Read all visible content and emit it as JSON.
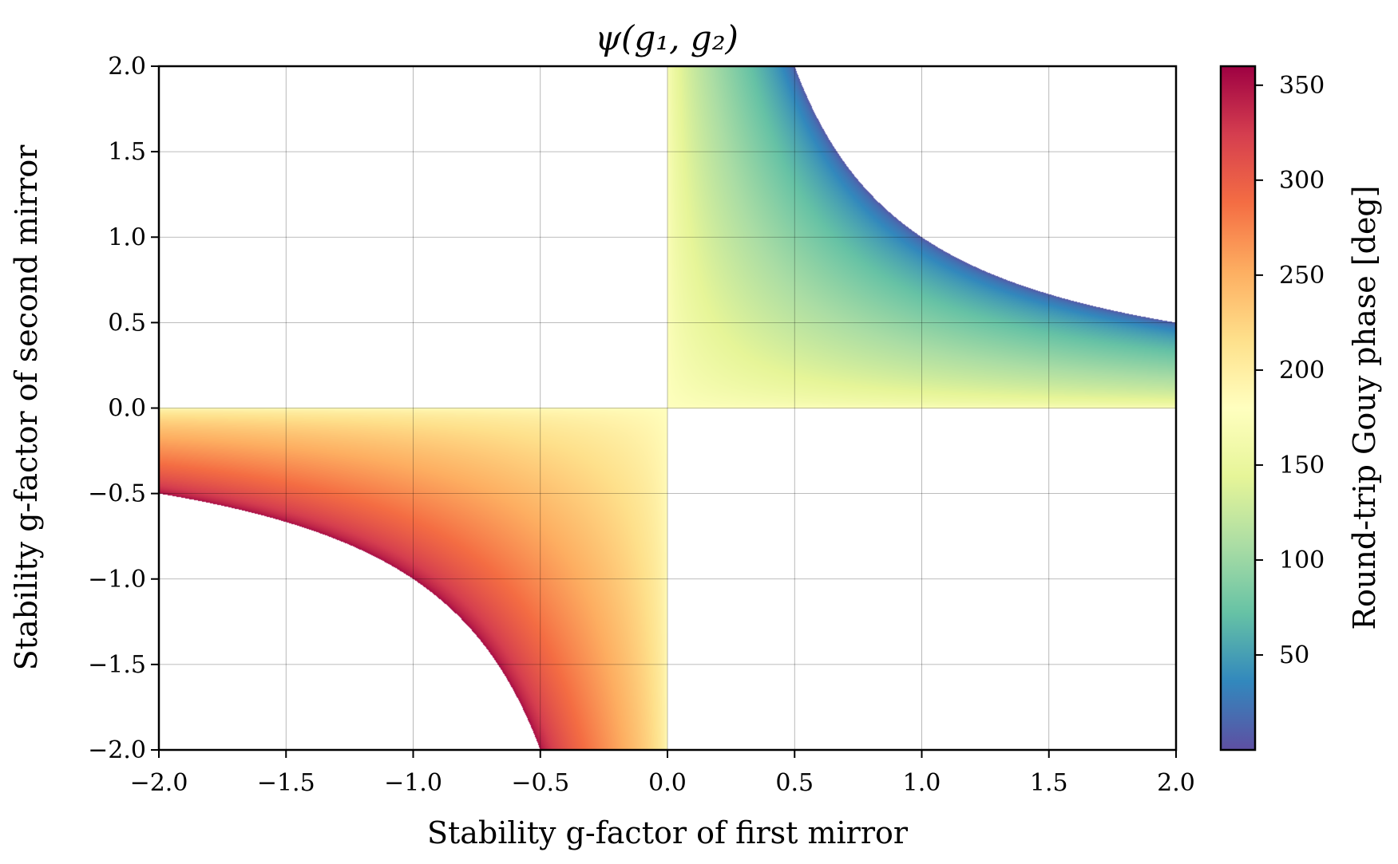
{
  "chart_data": {
    "type": "heatmap",
    "title": "ψ(g₁, g₂)",
    "xlabel": "Stability g-factor of first mirror",
    "ylabel": "Stability g-factor of second mirror",
    "xlim": [
      -2.0,
      2.0
    ],
    "ylim": [
      -2.0,
      2.0
    ],
    "grid": true,
    "xticks": [
      "−2.0",
      "−1.5",
      "−1.0",
      "−0.5",
      "0.0",
      "0.5",
      "1.0",
      "1.5",
      "2.0"
    ],
    "yticks": [
      "−2.0",
      "−1.5",
      "−1.0",
      "−0.5",
      "0.0",
      "0.5",
      "1.0",
      "1.5",
      "2.0"
    ],
    "xtick_values": [
      -2.0,
      -1.5,
      -1.0,
      -0.5,
      0.0,
      0.5,
      1.0,
      1.5,
      2.0
    ],
    "ytick_values": [
      -2.0,
      -1.5,
      -1.0,
      -0.5,
      0.0,
      0.5,
      1.0,
      1.5,
      2.0
    ],
    "colormap": "Spectral_r",
    "colormap_stops": [
      "#9e0142",
      "#d53e4f",
      "#f46d43",
      "#fdae61",
      "#fee08b",
      "#ffffbf",
      "#e6f598",
      "#abdda4",
      "#66c2a5",
      "#3288bd",
      "#5e4fa2"
    ],
    "colorbar": {
      "label": "Round-trip Gouy phase [deg]",
      "range": [
        0,
        360
      ],
      "ticks": [
        "50",
        "100",
        "150",
        "200",
        "250",
        "300",
        "350"
      ],
      "tick_values": [
        50,
        100,
        150,
        200,
        250,
        300,
        350
      ]
    },
    "sample_grid": {
      "note_x": "g1",
      "x": [
        -2.0,
        -1.5,
        -1.0,
        -0.5,
        0.0,
        0.5,
        1.0,
        1.5,
        2.0
      ],
      "y": [
        -2.0,
        -1.5,
        -1.0,
        -0.5,
        0.0,
        0.5,
        1.0,
        1.5,
        2.0
      ],
      "z": [
        [
          null,
          null,
          null,
          360,
          180,
          null,
          null,
          null,
          null
        ],
        [
          null,
          null,
          null,
          300,
          180,
          null,
          null,
          null,
          null
        ],
        [
          null,
          null,
          360,
          270,
          180,
          null,
          null,
          null,
          null
        ],
        [
          360,
          300,
          270,
          240,
          180,
          null,
          null,
          null,
          null
        ],
        [
          180,
          180,
          180,
          180,
          180,
          180,
          180,
          180,
          180
        ],
        [
          null,
          null,
          null,
          null,
          180,
          120,
          90,
          60,
          0
        ],
        [
          null,
          null,
          null,
          null,
          180,
          90,
          0,
          null,
          null
        ],
        [
          null,
          null,
          null,
          null,
          180,
          60,
          null,
          null,
          null
        ],
        [
          null,
          null,
          null,
          null,
          180,
          0,
          null,
          null,
          null
        ]
      ]
    }
  }
}
